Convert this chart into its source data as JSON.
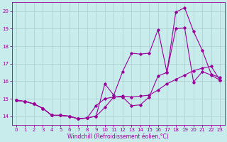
{
  "xlabel": "Windchill (Refroidissement éolien,°C)",
  "background_color": "#c8ecec",
  "line_color": "#990099",
  "grid_color": "#aacccc",
  "xlim": [
    -0.5,
    23.5
  ],
  "ylim": [
    13.5,
    20.5
  ],
  "yticks": [
    14,
    15,
    16,
    17,
    18,
    19,
    20
  ],
  "xticks": [
    0,
    1,
    2,
    3,
    4,
    5,
    6,
    7,
    8,
    9,
    10,
    11,
    12,
    13,
    14,
    15,
    16,
    17,
    18,
    19,
    20,
    21,
    22,
    23
  ],
  "line1_x": [
    0,
    1,
    2,
    3,
    4,
    5,
    6,
    7,
    8,
    9,
    10,
    11,
    12,
    13,
    14,
    15,
    16,
    17,
    18,
    19,
    20,
    21,
    22,
    23
  ],
  "line1_y": [
    14.9,
    14.85,
    14.7,
    14.45,
    14.05,
    14.05,
    14.0,
    13.85,
    13.9,
    14.6,
    15.0,
    15.1,
    15.15,
    15.1,
    15.15,
    15.2,
    15.5,
    15.85,
    16.1,
    16.35,
    16.6,
    16.75,
    16.85,
    16.05
  ],
  "line2_x": [
    0,
    1,
    2,
    3,
    4,
    5,
    6,
    7,
    8,
    9,
    10,
    11,
    12,
    13,
    14,
    15,
    16,
    17,
    18,
    19,
    20,
    21,
    22,
    23
  ],
  "line2_y": [
    14.9,
    14.85,
    14.7,
    14.45,
    14.05,
    14.05,
    14.0,
    13.85,
    13.9,
    14.0,
    15.85,
    15.2,
    16.55,
    17.6,
    17.55,
    17.6,
    18.95,
    16.5,
    19.95,
    20.2,
    18.85,
    17.75,
    16.4,
    16.2
  ],
  "line3_x": [
    0,
    1,
    2,
    3,
    4,
    5,
    6,
    7,
    8,
    9,
    10,
    11,
    12,
    13,
    14,
    15,
    16,
    17,
    18,
    19,
    20,
    21,
    22,
    23
  ],
  "line3_y": [
    14.9,
    14.85,
    14.7,
    14.45,
    14.05,
    14.05,
    14.0,
    13.85,
    13.9,
    14.0,
    14.5,
    15.1,
    15.1,
    14.6,
    14.65,
    15.1,
    16.3,
    16.5,
    19.0,
    19.05,
    15.95,
    16.55,
    16.35,
    16.05
  ]
}
